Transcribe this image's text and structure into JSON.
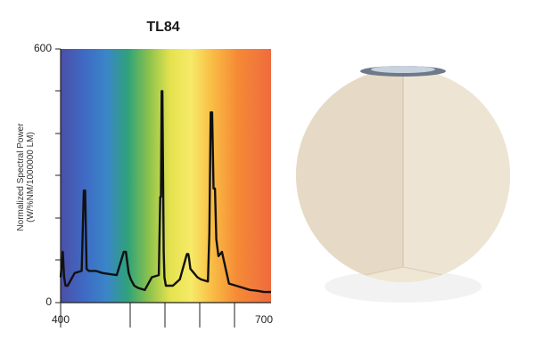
{
  "chart_data": {
    "type": "line",
    "title": "TL84",
    "ylabel_line1": "Normalized Spectral Power",
    "ylabel_line2": "(W/%NM/1000000 LM)",
    "xlabel": "",
    "xlim": [
      400,
      700
    ],
    "ylim": [
      0,
      600
    ],
    "xticks": [
      "400",
      "700"
    ],
    "yticks": [
      "600",
      "0"
    ],
    "background": "visible spectrum gradient (violet-blue to red)",
    "grid": false,
    "series": [
      {
        "color": "#111111",
        "x": [
          400,
          403,
          405,
          407,
          410,
          420,
          430,
          433,
          435,
          437,
          440,
          450,
          460,
          480,
          490,
          493,
          497,
          500,
          505,
          510,
          520,
          530,
          540,
          542,
          543,
          544,
          545,
          547,
          548,
          550,
          560,
          570,
          580,
          582,
          583,
          585,
          590,
          595,
          600,
          610,
          612,
          614,
          616,
          618,
          620,
          622,
          625,
          630,
          640,
          650,
          660,
          670,
          680,
          690,
          700
        ],
        "y": [
          60,
          120,
          60,
          40,
          40,
          70,
          75,
          265,
          265,
          80,
          75,
          75,
          70,
          65,
          120,
          120,
          70,
          55,
          40,
          35,
          30,
          60,
          65,
          250,
          250,
          500,
          500,
          120,
          60,
          40,
          40,
          55,
          115,
          115,
          105,
          80,
          70,
          60,
          55,
          50,
          165,
          450,
          450,
          270,
          270,
          150,
          110,
          120,
          45,
          40,
          35,
          30,
          28,
          25,
          25
        ]
      }
    ]
  },
  "photo": {
    "description_icon": "room-corner-lamp-image"
  }
}
